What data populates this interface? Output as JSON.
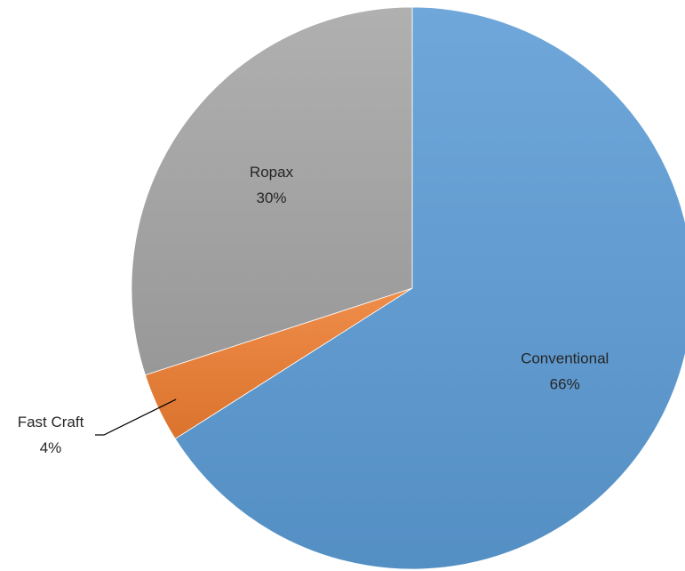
{
  "chart_data": {
    "type": "pie",
    "title": "",
    "slices": [
      {
        "name": "Conventional",
        "value": 66,
        "percent_label": "66%",
        "color": "#5b9bd5"
      },
      {
        "name": "Fast Craft",
        "value": 4,
        "percent_label": "4%",
        "color": "#ed7d31"
      },
      {
        "name": "Ropax",
        "value": 30,
        "percent_label": "30%",
        "color": "#a5a5a5"
      }
    ],
    "start_angle_deg": 0,
    "direction": "clockwise",
    "legend": "none",
    "data_labels": "category and percent"
  }
}
